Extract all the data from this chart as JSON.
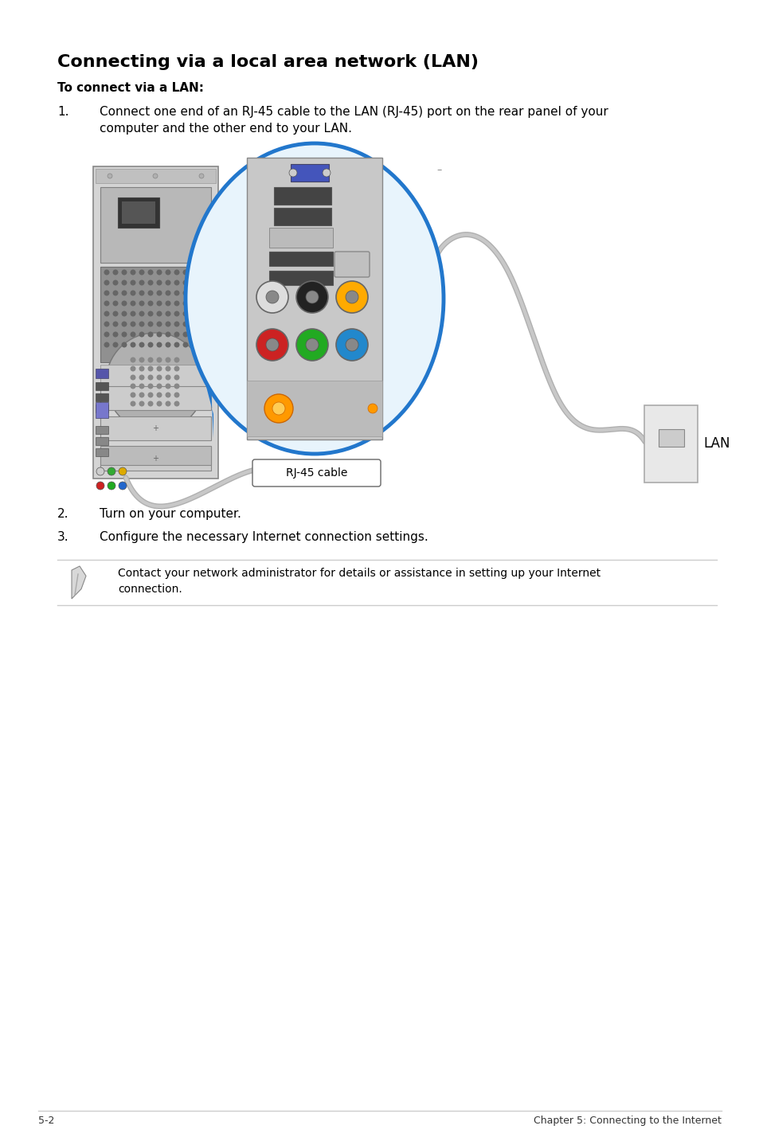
{
  "title": "Connecting via a local area network (LAN)",
  "subtitle": "To connect via a LAN:",
  "step1_num": "1.",
  "step1": "Connect one end of an RJ-45 cable to the LAN (RJ-45) port on the rear panel of your\ncomputer and the other end to your LAN.",
  "step2_num": "2.",
  "step2": "Turn on your computer.",
  "step3_num": "3.",
  "step3": "Configure the necessary Internet connection settings.",
  "note_text": "Contact your network administrator for details or assistance in setting up your Internet\nconnection.",
  "footer_left": "5-2",
  "footer_right": "Chapter 5: Connecting to the Internet",
  "bg_color": "#ffffff",
  "title_color": "#000000",
  "body_color": "#000000"
}
